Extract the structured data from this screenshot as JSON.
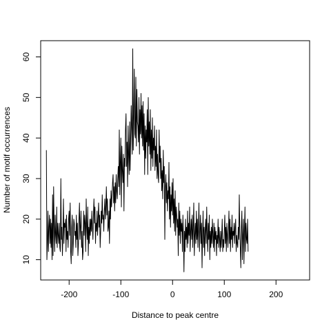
{
  "chart_data": {
    "type": "line",
    "title": "",
    "xlabel": "Distance to peak centre",
    "ylabel": "Number of motif occurrences",
    "xlim": [
      -255,
      265
    ],
    "ylim": [
      5,
      64
    ],
    "x_ticks": [
      -200,
      -100,
      0,
      100,
      200
    ],
    "x_tick_labels": [
      "-200",
      "-100",
      "0",
      "100",
      "200"
    ],
    "y_ticks": [
      10,
      20,
      30,
      40,
      50,
      60
    ],
    "y_tick_labels": [
      "10",
      "20",
      "30",
      "40",
      "50",
      "60"
    ],
    "grid": false,
    "legend": "none",
    "line_color": "#000000",
    "x_start": -244,
    "x_step": 1,
    "series": [
      {
        "values": [
          37,
          10,
          14,
          22,
          12,
          18,
          21,
          14,
          20,
          13,
          19,
          10,
          26,
          11,
          28,
          18,
          12,
          21,
          16,
          14,
          23,
          13,
          19,
          16,
          14,
          19,
          13,
          12,
          30,
          15,
          18,
          11,
          16,
          25,
          14,
          19,
          18,
          20,
          12,
          21,
          15,
          17,
          13,
          20,
          22,
          16,
          24,
          12,
          9,
          18,
          21,
          11,
          14,
          20,
          19,
          16,
          17,
          13,
          21,
          15,
          19,
          11,
          14,
          20,
          24,
          15,
          18,
          22,
          13,
          17,
          10,
          12,
          22,
          16,
          21,
          19,
          12,
          25,
          18,
          15,
          23,
          11,
          18,
          14,
          20,
          16,
          20,
          17,
          22,
          18,
          15,
          21,
          25,
          19,
          23,
          14,
          19,
          17,
          22,
          16,
          20,
          24,
          18,
          21,
          13,
          17,
          22,
          19,
          26,
          20,
          21,
          17,
          22,
          25,
          20,
          23,
          28,
          21,
          25,
          17,
          18,
          22,
          14,
          25,
          20,
          27,
          23,
          26,
          29,
          31,
          24,
          28,
          22,
          29,
          24,
          31,
          27,
          25,
          30,
          33,
          28,
          42,
          26,
          34,
          40,
          23,
          38,
          32,
          29,
          36,
          22,
          35,
          33,
          42,
          46,
          33,
          39,
          28,
          43,
          36,
          31,
          44,
          32,
          40,
          48,
          42,
          36,
          62,
          37,
          45,
          57,
          41,
          40,
          55,
          38,
          52,
          44,
          43,
          39,
          50,
          36,
          47,
          41,
          51,
          40,
          48,
          38,
          49,
          37,
          46,
          31,
          43,
          35,
          42,
          39,
          47,
          31,
          50,
          38,
          44,
          36,
          47,
          32,
          42,
          35,
          45,
          33,
          40,
          37,
          43,
          32,
          38,
          33,
          42,
          30,
          36,
          31,
          29,
          42,
          34,
          38,
          30,
          35,
          27,
          32,
          25,
          37,
          29,
          33,
          15,
          28,
          31,
          24,
          29,
          22,
          27,
          25,
          34,
          20,
          28,
          18,
          26,
          22,
          29,
          21,
          30,
          19,
          25,
          17,
          27,
          16,
          23,
          21,
          18,
          20,
          11,
          24,
          16,
          22,
          14,
          20,
          17,
          19,
          12,
          21,
          16,
          7,
          17,
          12,
          20,
          15,
          18,
          13,
          22,
          14,
          19,
          16,
          23,
          12,
          17,
          20,
          15,
          21,
          13,
          18,
          24,
          11,
          16,
          19,
          14,
          22,
          15,
          20,
          13,
          18,
          24,
          12,
          17,
          21,
          14,
          19,
          8,
          16,
          22,
          13,
          18,
          11,
          17,
          20,
          14,
          23,
          16,
          12,
          19,
          15,
          21,
          10,
          17,
          13,
          18,
          14,
          20,
          16,
          13,
          19,
          12,
          18,
          15,
          17,
          11,
          16,
          14,
          20,
          13,
          18,
          15,
          12,
          17,
          13,
          16,
          20,
          12,
          15,
          13,
          17,
          21,
          14,
          18,
          12,
          19,
          16,
          13,
          17,
          22,
          14,
          20,
          12,
          18,
          15,
          21,
          13,
          17,
          16,
          19,
          14,
          18,
          20,
          12,
          16,
          14,
          13,
          18,
          15,
          26,
          17,
          13,
          8,
          18,
          22,
          10,
          16,
          20,
          9,
          17,
          23,
          12,
          19,
          15,
          14,
          20,
          12
        ]
      }
    ]
  }
}
